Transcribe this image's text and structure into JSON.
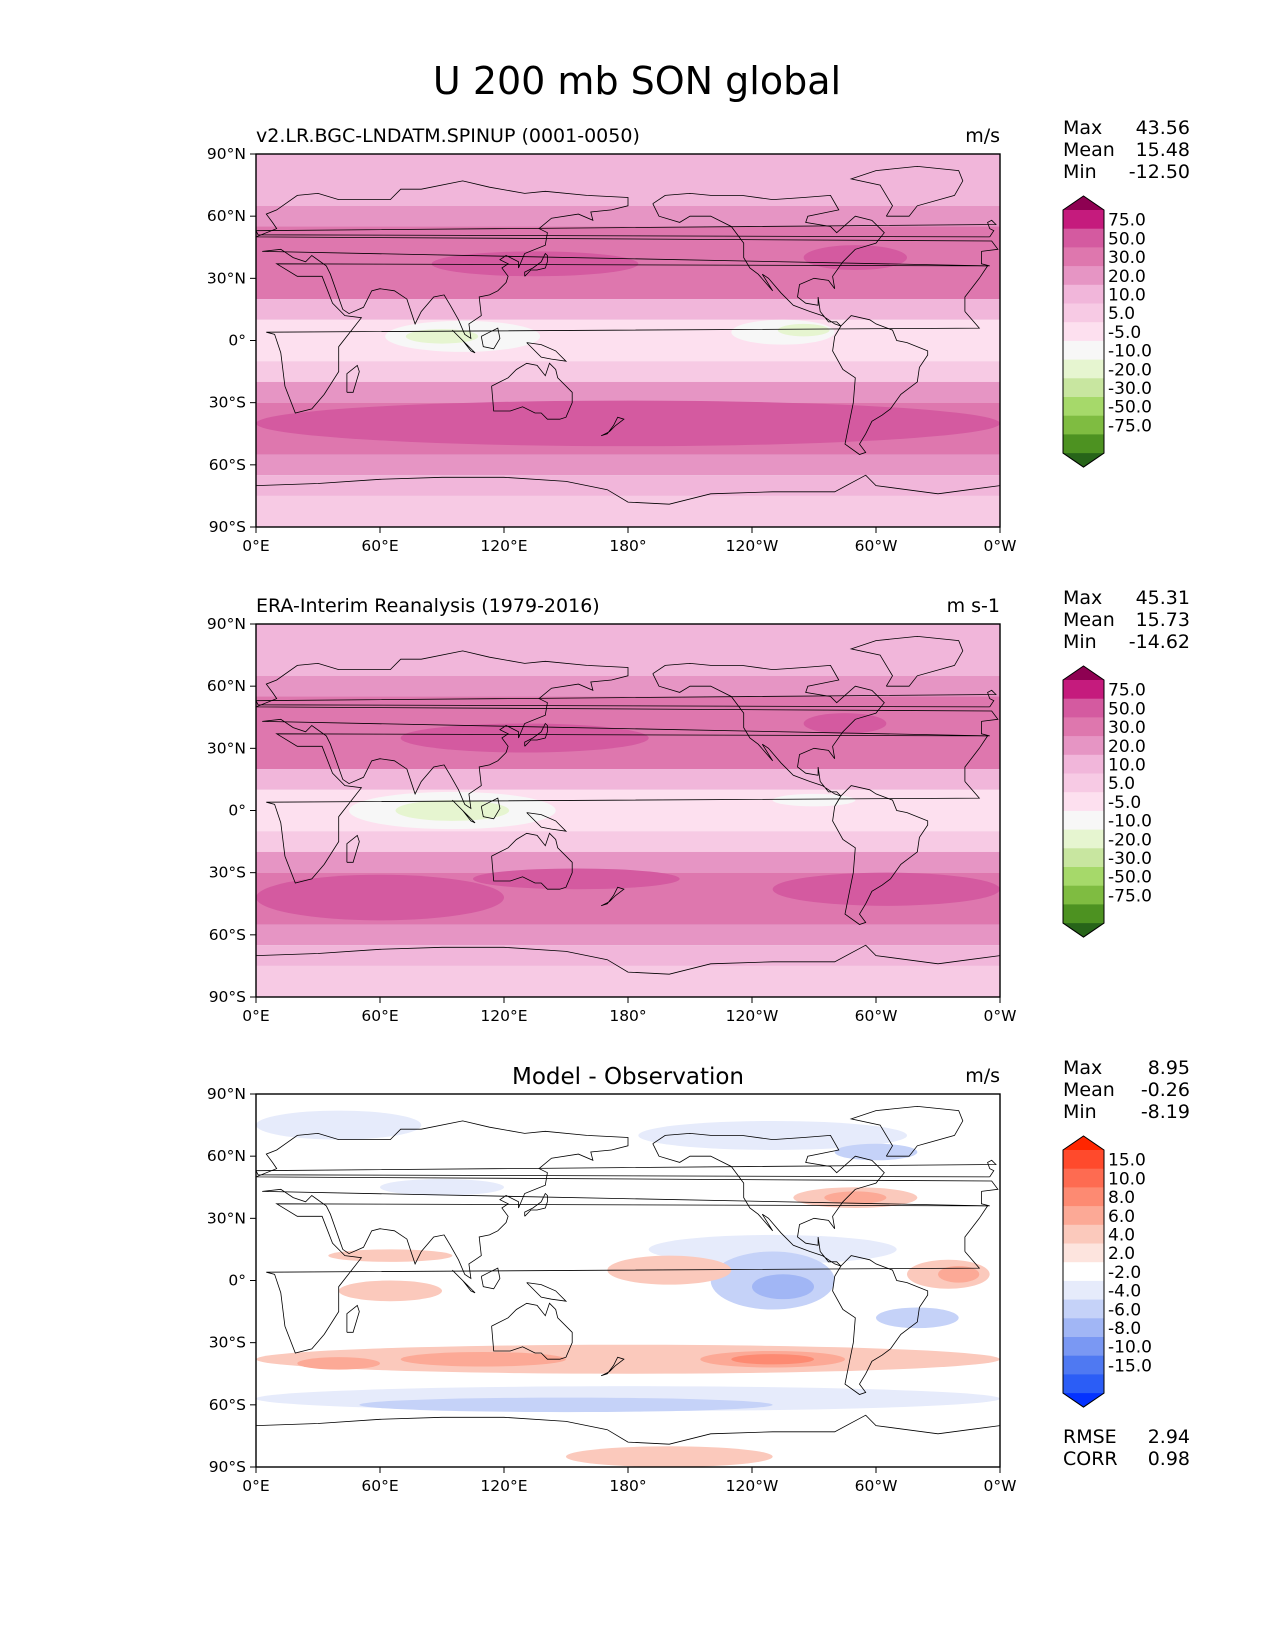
{
  "page": {
    "title": "U 200 mb SON global"
  },
  "colors": {
    "fill_seq": [
      "#276419",
      "#4d9221",
      "#7fbc41",
      "#a6d96a",
      "#c8e6a0",
      "#e6f5d0",
      "#f7f7f7",
      "#fde0ef",
      "#f7cae4",
      "#f1b6da",
      "#e695c4",
      "#de77ae",
      "#d45aa0",
      "#c51b7d",
      "#8e0152"
    ],
    "fill_diff": [
      "#0432ff",
      "#2b5df6",
      "#4f79f2",
      "#7a98f3",
      "#a1b6f5",
      "#c5d2f8",
      "#e6ebfb",
      "#ffffff",
      "#fde4de",
      "#fbc9bc",
      "#fca996",
      "#fd8a72",
      "#fe6b51",
      "#ff4a2c",
      "#ff2600"
    ],
    "axes_frame": "#000000",
    "coastline": "#000000"
  },
  "panels": [
    {
      "left_title": "v2.LR.BGC-LNDATM.SPINUP (0001-0050)",
      "center_title": "",
      "units": "m/s",
      "stats": [
        {
          "label": "Max",
          "value": "43.56"
        },
        {
          "label": "Mean",
          "value": "15.48"
        },
        {
          "label": "Min",
          "value": "-12.50"
        }
      ],
      "extra_stats": [],
      "colorbar": {
        "levels": [
          "75.0",
          "50.0",
          "30.0",
          "20.0",
          "10.0",
          "5.0",
          "-5.0",
          "-10.0",
          "-20.0",
          "-30.0",
          "-50.0",
          "-75.0"
        ],
        "scheme": "seq"
      }
    },
    {
      "left_title": "ERA-Interim Reanalysis (1979-2016)",
      "center_title": "",
      "units": "m s-1",
      "stats": [
        {
          "label": "Max",
          "value": "45.31"
        },
        {
          "label": "Mean",
          "value": "15.73"
        },
        {
          "label": "Min",
          "value": "-14.62"
        }
      ],
      "extra_stats": [],
      "colorbar": {
        "levels": [
          "75.0",
          "50.0",
          "30.0",
          "20.0",
          "10.0",
          "5.0",
          "-5.0",
          "-10.0",
          "-20.0",
          "-30.0",
          "-50.0",
          "-75.0"
        ],
        "scheme": "seq"
      }
    },
    {
      "left_title": "",
      "center_title": "Model - Observation",
      "units": "m/s",
      "stats": [
        {
          "label": "Max",
          "value": "8.95"
        },
        {
          "label": "Mean",
          "value": "-0.26"
        },
        {
          "label": "Min",
          "value": "-8.19"
        }
      ],
      "extra_stats": [
        {
          "label": "RMSE",
          "value": "2.94"
        },
        {
          "label": "CORR",
          "value": "0.98"
        }
      ],
      "colorbar": {
        "levels": [
          "15.0",
          "10.0",
          "8.0",
          "6.0",
          "4.0",
          "2.0",
          "-2.0",
          "-4.0",
          "-6.0",
          "-8.0",
          "-10.0",
          "-15.0"
        ],
        "scheme": "diff"
      }
    }
  ],
  "chart_data": [
    {
      "type": "heatmap",
      "title": "v2.LR.BGC-LNDATM.SPINUP (0001-0050)",
      "units": "m/s",
      "x_ticks": [
        "0°E",
        "60°E",
        "120°E",
        "180°",
        "120°W",
        "60°W",
        "0°W"
      ],
      "y_ticks": [
        "90°N",
        "60°N",
        "30°N",
        "0°",
        "30°S",
        "60°S",
        "90°S"
      ],
      "xlim": [
        0,
        360
      ],
      "ylim": [
        -90,
        90
      ],
      "bands": [
        {
          "lat_range": [
            65,
            90
          ],
          "level": "10.0"
        },
        {
          "lat_range": [
            55,
            65
          ],
          "level": "20.0"
        },
        {
          "lat_range": [
            20,
            55
          ],
          "level": "30.0"
        },
        {
          "lat_range": [
            10,
            20
          ],
          "level": "10.0"
        },
        {
          "lat_range": [
            -10,
            10
          ],
          "level": "-5.0"
        },
        {
          "lat_range": [
            -20,
            -10
          ],
          "level": "5.0"
        },
        {
          "lat_range": [
            -30,
            -20
          ],
          "level": "20.0"
        },
        {
          "lat_range": [
            -55,
            -30
          ],
          "level": "30.0"
        },
        {
          "lat_range": [
            -65,
            -55
          ],
          "level": "20.0"
        },
        {
          "lat_range": [
            -75,
            -65
          ],
          "level": "10.0"
        },
        {
          "lat_range": [
            -90,
            -75
          ],
          "level": "5.0"
        }
      ],
      "blobs": [
        {
          "lon": 135,
          "lat": 37,
          "w": 100,
          "h": 12,
          "level": "50.0"
        },
        {
          "lon": 290,
          "lat": 40,
          "w": 50,
          "h": 12,
          "level": "50.0"
        },
        {
          "lon": 100,
          "lat": 2,
          "w": 75,
          "h": 15,
          "level": "-10.0"
        },
        {
          "lon": 255,
          "lat": 4,
          "w": 50,
          "h": 12,
          "level": "-10.0"
        },
        {
          "lon": 265,
          "lat": 5,
          "w": 25,
          "h": 6,
          "level": "-20.0"
        },
        {
          "lon": 90,
          "lat": 2,
          "w": 35,
          "h": 7,
          "level": "-20.0"
        },
        {
          "lon": 180,
          "lat": -40,
          "w": 360,
          "h": 22,
          "level": "50.0"
        }
      ],
      "stats": {
        "max": 43.56,
        "mean": 15.48,
        "min": -12.5
      }
    },
    {
      "type": "heatmap",
      "title": "ERA-Interim Reanalysis (1979-2016)",
      "units": "m s-1",
      "x_ticks": [
        "0°E",
        "60°E",
        "120°E",
        "180°",
        "120°W",
        "60°W",
        "0°W"
      ],
      "y_ticks": [
        "90°N",
        "60°N",
        "30°N",
        "0°",
        "30°S",
        "60°S",
        "90°S"
      ],
      "xlim": [
        0,
        360
      ],
      "ylim": [
        -90,
        90
      ],
      "bands": [
        {
          "lat_range": [
            65,
            90
          ],
          "level": "10.0"
        },
        {
          "lat_range": [
            55,
            65
          ],
          "level": "20.0"
        },
        {
          "lat_range": [
            20,
            55
          ],
          "level": "30.0"
        },
        {
          "lat_range": [
            10,
            20
          ],
          "level": "10.0"
        },
        {
          "lat_range": [
            -10,
            10
          ],
          "level": "-5.0"
        },
        {
          "lat_range": [
            -20,
            -10
          ],
          "level": "5.0"
        },
        {
          "lat_range": [
            -30,
            -20
          ],
          "level": "20.0"
        },
        {
          "lat_range": [
            -55,
            -30
          ],
          "level": "30.0"
        },
        {
          "lat_range": [
            -65,
            -55
          ],
          "level": "20.0"
        },
        {
          "lat_range": [
            -75,
            -65
          ],
          "level": "10.0"
        },
        {
          "lat_range": [
            -90,
            -75
          ],
          "level": "5.0"
        }
      ],
      "blobs": [
        {
          "lon": 130,
          "lat": 35,
          "w": 120,
          "h": 14,
          "level": "50.0"
        },
        {
          "lon": 285,
          "lat": 42,
          "w": 40,
          "h": 10,
          "level": "50.0"
        },
        {
          "lon": 95,
          "lat": 0,
          "w": 100,
          "h": 18,
          "level": "-10.0"
        },
        {
          "lon": 95,
          "lat": 0,
          "w": 55,
          "h": 10,
          "level": "-20.0"
        },
        {
          "lon": 270,
          "lat": 5,
          "w": 40,
          "h": 6,
          "level": "-10.0"
        },
        {
          "lon": 60,
          "lat": -42,
          "w": 120,
          "h": 22,
          "level": "50.0"
        },
        {
          "lon": 155,
          "lat": -33,
          "w": 100,
          "h": 10,
          "level": "50.0"
        },
        {
          "lon": 305,
          "lat": -38,
          "w": 110,
          "h": 16,
          "level": "50.0"
        }
      ],
      "stats": {
        "max": 45.31,
        "mean": 15.73,
        "min": -14.62
      }
    },
    {
      "type": "heatmap",
      "title": "Model - Observation",
      "units": "m/s",
      "x_ticks": [
        "0°E",
        "60°E",
        "120°E",
        "180°",
        "120°W",
        "60°W",
        "0°W"
      ],
      "y_ticks": [
        "90°N",
        "60°N",
        "30°N",
        "0°",
        "30°S",
        "60°S",
        "90°S"
      ],
      "xlim": [
        0,
        360
      ],
      "ylim": [
        -90,
        90
      ],
      "bands": [
        {
          "lat_range": [
            -90,
            90
          ],
          "level": "-2.0"
        }
      ],
      "blobs": [
        {
          "lon": 40,
          "lat": 75,
          "w": 80,
          "h": 14,
          "level": "-4.0"
        },
        {
          "lon": 250,
          "lat": 70,
          "w": 130,
          "h": 14,
          "level": "-4.0"
        },
        {
          "lon": 300,
          "lat": 62,
          "w": 40,
          "h": 8,
          "level": "-6.0"
        },
        {
          "lon": 90,
          "lat": 45,
          "w": 60,
          "h": 8,
          "level": "-4.0"
        },
        {
          "lon": 290,
          "lat": 40,
          "w": 60,
          "h": 10,
          "level": "4.0"
        },
        {
          "lon": 290,
          "lat": 40,
          "w": 30,
          "h": 6,
          "level": "6.0"
        },
        {
          "lon": 250,
          "lat": 15,
          "w": 120,
          "h": 14,
          "level": "-4.0"
        },
        {
          "lon": 250,
          "lat": 0,
          "w": 60,
          "h": 28,
          "level": "-6.0"
        },
        {
          "lon": 255,
          "lat": -3,
          "w": 30,
          "h": 12,
          "level": "-8.0"
        },
        {
          "lon": 200,
          "lat": 5,
          "w": 60,
          "h": 14,
          "level": "4.0"
        },
        {
          "lon": 335,
          "lat": 3,
          "w": 40,
          "h": 14,
          "level": "4.0"
        },
        {
          "lon": 340,
          "lat": 3,
          "w": 20,
          "h": 8,
          "level": "6.0"
        },
        {
          "lon": 320,
          "lat": -18,
          "w": 40,
          "h": 10,
          "level": "-6.0"
        },
        {
          "lon": 65,
          "lat": 12,
          "w": 60,
          "h": 6,
          "level": "4.0"
        },
        {
          "lon": 65,
          "lat": -5,
          "w": 50,
          "h": 10,
          "level": "4.0"
        },
        {
          "lon": 180,
          "lat": -38,
          "w": 360,
          "h": 14,
          "level": "4.0"
        },
        {
          "lon": 250,
          "lat": -38,
          "w": 70,
          "h": 8,
          "level": "6.0"
        },
        {
          "lon": 250,
          "lat": -38,
          "w": 40,
          "h": 5,
          "level": "8.0"
        },
        {
          "lon": 40,
          "lat": -40,
          "w": 40,
          "h": 6,
          "level": "6.0"
        },
        {
          "lon": 110,
          "lat": -38,
          "w": 80,
          "h": 7,
          "level": "6.0"
        },
        {
          "lon": 180,
          "lat": -57,
          "w": 360,
          "h": 12,
          "level": "-4.0"
        },
        {
          "lon": 150,
          "lat": -60,
          "w": 200,
          "h": 7,
          "level": "-6.0"
        },
        {
          "lon": 200,
          "lat": -85,
          "w": 100,
          "h": 10,
          "level": "4.0"
        }
      ],
      "stats": {
        "max": 8.95,
        "mean": -0.26,
        "min": -8.19,
        "rmse": 2.94,
        "corr": 0.98
      }
    }
  ]
}
